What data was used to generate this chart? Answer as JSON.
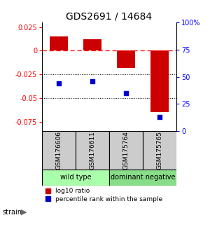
{
  "title": "GDS2691 / 14684",
  "samples": [
    "GSM176606",
    "GSM176611",
    "GSM175764",
    "GSM175765"
  ],
  "log10_ratio": [
    0.015,
    0.012,
    -0.018,
    -0.065
  ],
  "percentile_rank": [
    0.44,
    0.46,
    0.35,
    0.13
  ],
  "bar_color": "#cc0000",
  "dot_color": "#0000cc",
  "ylim_left": [
    -0.085,
    0.03
  ],
  "ylim_right": [
    0,
    1.0
  ],
  "yticks_left": [
    -0.075,
    -0.05,
    -0.025,
    0,
    0.025
  ],
  "ytick_labels_left": [
    "-0.075",
    "-0.05",
    "-0.025",
    "0",
    "0.025"
  ],
  "yticks_right": [
    0,
    0.25,
    0.5,
    0.75,
    1.0
  ],
  "ytick_labels_right": [
    "0",
    "25",
    "50",
    "75",
    "100%"
  ],
  "groups": [
    {
      "label": "wild type",
      "samples": [
        0,
        1
      ],
      "color": "#aaffaa"
    },
    {
      "label": "dominant negative",
      "samples": [
        2,
        3
      ],
      "color": "#88dd88"
    }
  ],
  "strain_label": "strain",
  "legend_red": "log10 ratio",
  "legend_blue": "percentile rank within the sample",
  "hline_y": 0,
  "dotted_lines": [
    -0.025,
    -0.05
  ],
  "background_color": "#ffffff",
  "sample_box_color": "#cccccc",
  "bar_width": 0.55
}
